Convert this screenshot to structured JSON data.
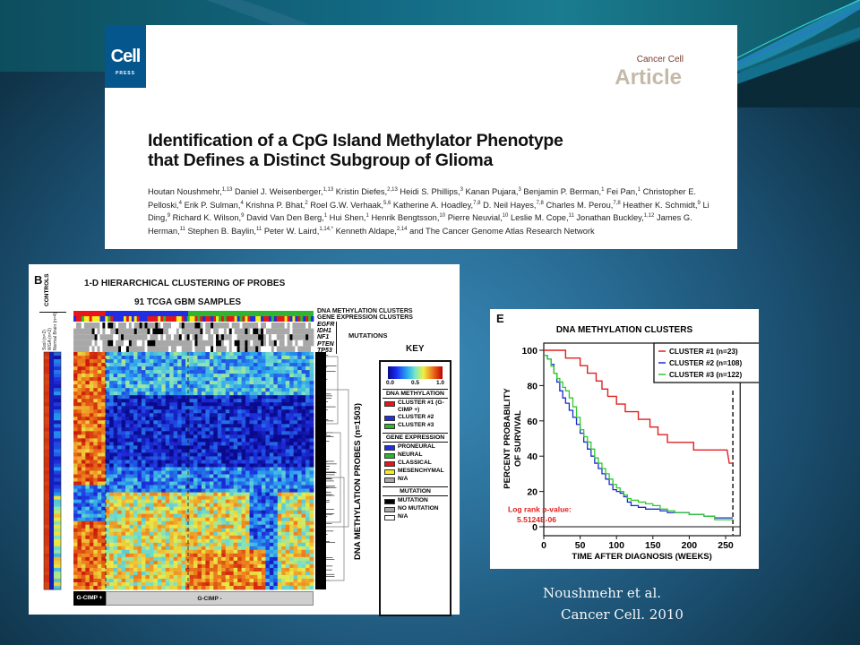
{
  "slide": {
    "citation_line1": "Noushmehr et al.",
    "citation_line2": "Cancer Cell. 2010"
  },
  "article": {
    "publisher_logo": "Cell",
    "publisher_sub": "PRESS",
    "journal": "Cancer Cell",
    "type": "Article",
    "title_line1": "Identification of a CpG Island Methylator Phenotype",
    "title_line2": "that Defines a Distinct Subgroup of Glioma",
    "authors": [
      {
        "name": "Houtan Noushmehr,",
        "sup": "1,13"
      },
      {
        "name": "Daniel J. Weisenberger,",
        "sup": "1,13"
      },
      {
        "name": "Kristin Diefes,",
        "sup": "2,13"
      },
      {
        "name": "Heidi S. Phillips,",
        "sup": "3"
      },
      {
        "name": "Kanan Pujara,",
        "sup": "3"
      },
      {
        "name": "Benjamin P. Berman,",
        "sup": "1"
      },
      {
        "name": "Fei Pan,",
        "sup": "1"
      },
      {
        "name": "Christopher E. Pelloski,",
        "sup": "4"
      },
      {
        "name": "Erik P. Sulman,",
        "sup": "4"
      },
      {
        "name": "Krishna P. Bhat,",
        "sup": "2"
      },
      {
        "name": "Roel G.W. Verhaak,",
        "sup": "5,6"
      },
      {
        "name": "Katherine A. Hoadley,",
        "sup": "7,8"
      },
      {
        "name": "D. Neil Hayes,",
        "sup": "7,8"
      },
      {
        "name": "Charles M. Perou,",
        "sup": "7,8"
      },
      {
        "name": "Heather K. Schmidt,",
        "sup": "9"
      },
      {
        "name": "Li Ding,",
        "sup": "9"
      },
      {
        "name": "Richard K. Wilson,",
        "sup": "9"
      },
      {
        "name": "David Van Den Berg,",
        "sup": "1"
      },
      {
        "name": "Hui Shen,",
        "sup": "1"
      },
      {
        "name": "Henrik Bengtsson,",
        "sup": "10"
      },
      {
        "name": "Pierre Neuvial,",
        "sup": "10"
      },
      {
        "name": "Leslie M. Cope,",
        "sup": "11"
      },
      {
        "name": "Jonathan Buckley,",
        "sup": "1,12"
      },
      {
        "name": "James G. Herman,",
        "sup": "11"
      },
      {
        "name": "Stephen B. Baylin,",
        "sup": "11"
      },
      {
        "name": "Peter W. Laird,",
        "sup": "1,14,*"
      },
      {
        "name": "Kenneth Aldape,",
        "sup": "2,14"
      },
      {
        "name": "and The Cancer Genome Atlas Research Network",
        "sup": ""
      }
    ]
  },
  "panel_b": {
    "letter": "B",
    "title": "1-D HIERARCHICAL CLUSTERING OF PROBES",
    "subtitle": "91 TCGA GBM SAMPLES",
    "controls_label": "CONTROLS",
    "control_columns": [
      "SssI (n=2)",
      "WGA (n=2)",
      "Normal Brain (n=4)"
    ],
    "track_labels": {
      "dna_methylation_clusters": "DNA METHYLATION CLUSTERS",
      "gene_expression_clusters": "GENE EXPRESSION CLUSTERS",
      "mutations_label": "MUTATIONS",
      "genes": [
        "EGFR",
        "IDH1",
        "NF1",
        "PTEN",
        "TP53"
      ]
    },
    "key_title": "KEY",
    "colorbar": {
      "ticks": [
        "0.0",
        "0.5",
        "1.0"
      ]
    },
    "key_sections": [
      {
        "heading": "DNA METHYLATION",
        "items": [
          {
            "label": "CLUSTER #1 (G-CIMP +)",
            "color": "#e8151b"
          },
          {
            "label": "CLUSTER #2",
            "color": "#1f2ee0"
          },
          {
            "label": "CLUSTER #3",
            "color": "#2fb52f"
          }
        ]
      },
      {
        "heading": "GENE EXPRESSION",
        "items": [
          {
            "label": "PRONEURAL",
            "color": "#1f2ee0"
          },
          {
            "label": "NEURAL",
            "color": "#2fb52f"
          },
          {
            "label": "CLASSICAL",
            "color": "#e8151b"
          },
          {
            "label": "MESENCHYMAL",
            "color": "#f5ee1a"
          },
          {
            "label": "N/A",
            "color": "#a8a8a8"
          }
        ]
      },
      {
        "heading": "MUTATION",
        "items": [
          {
            "label": "MUTATION",
            "color": "#000000"
          },
          {
            "label": "NO MUTATION",
            "color": "#a8a8a8"
          },
          {
            "label": "N/A",
            "color": "#ffffff"
          }
        ]
      }
    ],
    "probes_label": "DNA METHYLATION PROBES (n=1503)",
    "gcimp_pos": "G-CIMP +",
    "gcimp_neg": "G-CIMP -"
  },
  "chart_data": {
    "type": "line",
    "panel_letter": "E",
    "title": "DNA METHYLATION CLUSTERS",
    "xlabel": "TIME AFTER DIAGNOSIS (WEEKS)",
    "ylabel_line1": "PERCENT PROBABILITY",
    "ylabel_line2": "OF SURVIVAL",
    "xlim": [
      0,
      270
    ],
    "ylim": [
      0,
      100
    ],
    "xticks": [
      0,
      50,
      100,
      150,
      200,
      250
    ],
    "yticks": [
      0,
      20,
      40,
      60,
      80,
      100
    ],
    "legend_position": "top-right",
    "cutoff_week": 260,
    "annotation_line1": "Log rank p-value:",
    "annotation_line2": "5.5124E-06",
    "series": [
      {
        "name": "CLUSTER #1 (n=23)",
        "color": "#e02020",
        "x": [
          0,
          30,
          30,
          50,
          50,
          60,
          60,
          72,
          72,
          80,
          80,
          88,
          88,
          100,
          100,
          112,
          112,
          130,
          130,
          146,
          146,
          157,
          157,
          170,
          170,
          206,
          206,
          252,
          255,
          260
        ],
        "y": [
          100,
          100,
          95.6,
          95.6,
          91.3,
          91.3,
          87,
          87,
          82.6,
          82.6,
          78,
          78,
          73.9,
          73.9,
          69.5,
          69.5,
          65.2,
          65.2,
          60.9,
          60.9,
          56.5,
          56.5,
          52.2,
          52.2,
          47.8,
          47.8,
          43.5,
          43.5,
          36,
          36
        ]
      },
      {
        "name": "CLUSTER #2 (n=108)",
        "color": "#1a2ad0",
        "x": [
          0,
          5,
          10,
          14,
          18,
          22,
          26,
          30,
          35,
          40,
          45,
          50,
          55,
          60,
          65,
          70,
          75,
          80,
          85,
          90,
          95,
          100,
          105,
          110,
          115,
          120,
          130,
          140,
          150,
          160,
          170,
          180,
          200,
          220,
          235,
          250,
          260
        ],
        "y": [
          97,
          95,
          92,
          87,
          82,
          77,
          73,
          70,
          66,
          62,
          58,
          53,
          48,
          44,
          40,
          36,
          33,
          30,
          27,
          24,
          21,
          20,
          19,
          17,
          14,
          12,
          11,
          10,
          10,
          9,
          8,
          8,
          7,
          6,
          5,
          5,
          5
        ]
      },
      {
        "name": "CLUSTER #3 (n=122)",
        "color": "#2ec92e",
        "x": [
          0,
          5,
          10,
          14,
          18,
          22,
          26,
          30,
          35,
          40,
          45,
          50,
          55,
          60,
          65,
          70,
          75,
          80,
          85,
          90,
          95,
          100,
          105,
          110,
          115,
          120,
          130,
          140,
          150,
          160,
          170,
          180,
          200,
          220,
          235,
          250,
          260
        ],
        "y": [
          97,
          95,
          91,
          87,
          84,
          82,
          79,
          77,
          73,
          68,
          62,
          55,
          51,
          48,
          44,
          39,
          36,
          33,
          30,
          27,
          24,
          22,
          20,
          18,
          16,
          15,
          14,
          13,
          12,
          10,
          9,
          8,
          7,
          6,
          4,
          4,
          4
        ]
      }
    ]
  }
}
